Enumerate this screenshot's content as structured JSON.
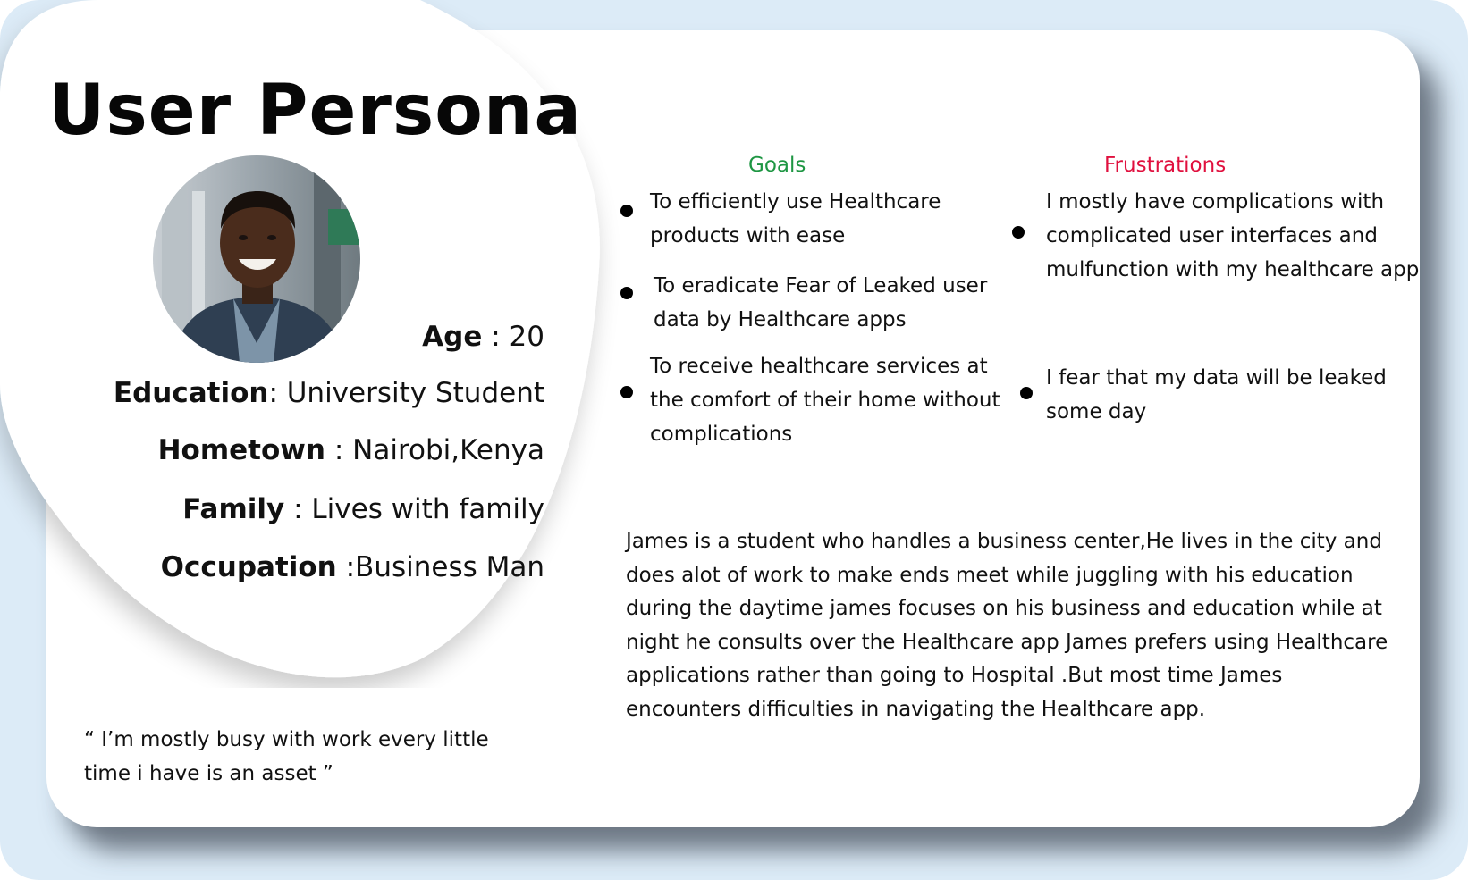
{
  "title": "User Persona",
  "attributes": {
    "age": {
      "label": "Age",
      "value": " : 20"
    },
    "education": {
      "label": "Education",
      "value": ": University Student"
    },
    "hometown": {
      "label": "Hometown",
      "value": " : Nairobi,Kenya"
    },
    "family": {
      "label": "Family",
      "value": " : Lives with family"
    },
    "occupation": {
      "label": "Occupation",
      "value": " :Business Man"
    }
  },
  "quote": "“ I’m mostly busy with work every little time i have is an asset ”",
  "goals": {
    "heading": "Goals",
    "items": [
      "To efficiently use Healthcare products with ease",
      "To eradicate Fear of Leaked user data by Healthcare apps",
      "To  receive healthcare services at the comfort of their home without complications"
    ]
  },
  "frustrations": {
    "heading": "Frustrations",
    "items": [
      "I mostly have complications with complicated user interfaces and mulfunction with my healthcare app",
      "I fear that my data will be leaked some day"
    ]
  },
  "bio": "James is a student who handles a business center,He lives in the city and does alot of work to make ends meet while juggling with his education during the daytime james focuses on his  business and education while at night he consults over the Healthcare app James prefers using Healthcare applications rather than going to Hospital .But most time James encounters difficulties in navigating the Healthcare app.",
  "colors": {
    "goals_heading": "#1e9643",
    "frustrations_heading": "#e0103e",
    "background": "#dcebf7",
    "card": "#ffffff"
  }
}
